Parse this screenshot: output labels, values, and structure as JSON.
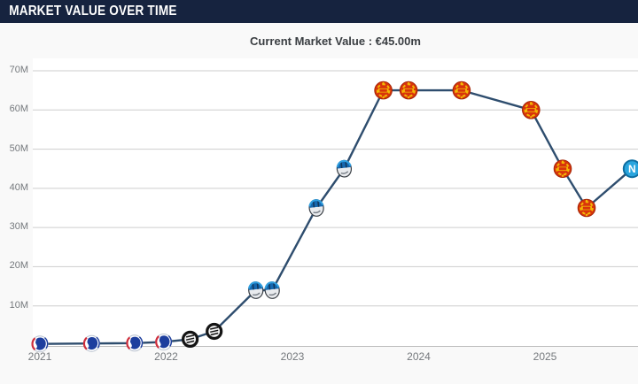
{
  "header": {
    "title": "MARKET VALUE OVER TIME",
    "bg_color": "#16233f",
    "text_color": "#ffffff"
  },
  "subtitle": {
    "label": "Current Market Value : €45.00m"
  },
  "chart_data": {
    "type": "line",
    "title": "Current Market Value : €45.00m",
    "value_unit": "million EUR",
    "current_value": "€45.00m",
    "grid": true,
    "legend": false,
    "line_color": "#2e4d6e",
    "gridline_color": "#cdcdcd",
    "axis_line_color": "#bdbdbd",
    "plot_bg": "#ffffff",
    "page_bg": "#f9f9f9",
    "ylim": [
      0,
      73
    ],
    "xlim": [
      2020.8,
      2025.74
    ],
    "y_ticks": [
      {
        "value": 10,
        "label": "10M"
      },
      {
        "value": 20,
        "label": "20M"
      },
      {
        "value": 30,
        "label": "30M"
      },
      {
        "value": 40,
        "label": "40M"
      },
      {
        "value": 50,
        "label": "50M"
      },
      {
        "value": 60,
        "label": "60M"
      },
      {
        "value": 70,
        "label": "70M"
      }
    ],
    "x_ticks": [
      {
        "value": 2021,
        "label": "2021"
      },
      {
        "value": 2022,
        "label": "2022"
      },
      {
        "value": 2023,
        "label": "2023"
      },
      {
        "value": 2024,
        "label": "2024"
      },
      {
        "value": 2025,
        "label": "2025"
      }
    ],
    "points": [
      {
        "date": 2021.0,
        "value": 0.3,
        "club": "copenhagen"
      },
      {
        "date": 2021.41,
        "value": 0.4,
        "club": "copenhagen"
      },
      {
        "date": 2021.75,
        "value": 0.5,
        "club": "copenhagen"
      },
      {
        "date": 2021.98,
        "value": 0.8,
        "club": "copenhagen"
      },
      {
        "date": 2022.19,
        "value": 1.5,
        "club": "sturm_graz"
      },
      {
        "date": 2022.38,
        "value": 3.5,
        "club": "sturm_graz"
      },
      {
        "date": 2022.71,
        "value": 14,
        "club": "atalanta"
      },
      {
        "date": 2022.84,
        "value": 14,
        "club": "atalanta"
      },
      {
        "date": 2023.19,
        "value": 35,
        "club": "atalanta"
      },
      {
        "date": 2023.41,
        "value": 45,
        "club": "atalanta"
      },
      {
        "date": 2023.72,
        "value": 65,
        "club": "man_united"
      },
      {
        "date": 2023.92,
        "value": 65,
        "club": "man_united"
      },
      {
        "date": 2024.34,
        "value": 65,
        "club": "man_united"
      },
      {
        "date": 2024.89,
        "value": 60,
        "club": "man_united"
      },
      {
        "date": 2025.14,
        "value": 45,
        "club": "man_united"
      },
      {
        "date": 2025.33,
        "value": 35,
        "club": "man_united"
      },
      {
        "date": 2025.69,
        "value": 45,
        "club": "napoli"
      }
    ],
    "clubs": {
      "copenhagen": {
        "name": "FC Copenhagen",
        "icon": "copenhagen-crest",
        "bg": "#ffffff",
        "primary": "#1d3e9e",
        "accent": "#cf2e3c",
        "ring": "#b9c2cf"
      },
      "sturm_graz": {
        "name": "Sturm Graz",
        "icon": "sturm-graz-crest",
        "bg": "#f5f5f5",
        "primary": "#141414",
        "accent": "#141414",
        "ring": "#141414"
      },
      "atalanta": {
        "name": "Atalanta",
        "icon": "atalanta-crest",
        "bg": "#e9ebee",
        "primary": "#1568b0",
        "accent": "#10375c",
        "ring": "#2f9fe0"
      },
      "man_united": {
        "name": "Manchester United",
        "icon": "man-united-crest",
        "bg": "#d8340b",
        "primary": "#f3b705",
        "accent": "#8f1d03",
        "ring": "#a32607"
      },
      "napoli": {
        "name": "Napoli",
        "icon": "napoli-crest",
        "bg": "#29a5de",
        "primary": "#ffffff",
        "accent": "#0e6da0",
        "ring": "#0e6da0",
        "letter": "N"
      }
    }
  }
}
